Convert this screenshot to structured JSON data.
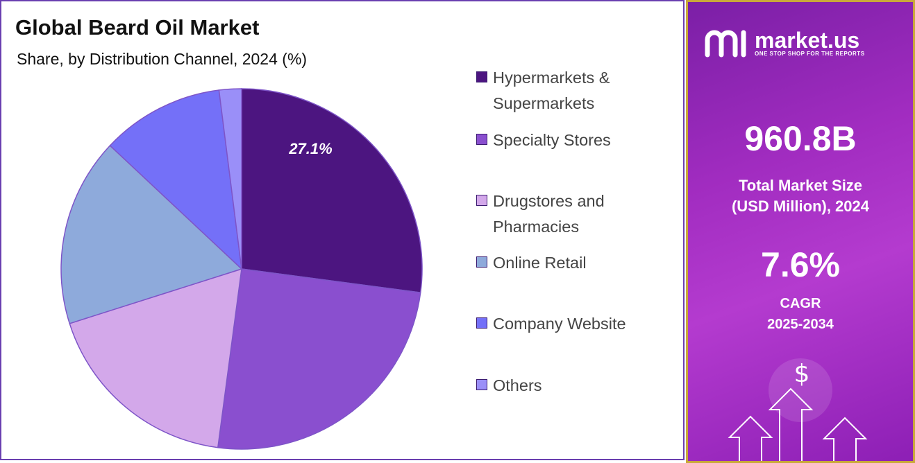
{
  "chart_data": {
    "type": "pie",
    "title": "Global Beard Oil Market",
    "subtitle": "Share, by Distribution Channel, 2024 (%)",
    "categories": [
      "Hypermarkets & Supermarkets",
      "Specialty Stores",
      "Drugstores and Pharmacies",
      "Online Retail",
      "Company Website",
      "Others"
    ],
    "values": [
      27.1,
      25.0,
      18.0,
      16.9,
      11.0,
      2.0
    ],
    "colors": [
      "#4c1580",
      "#8a4fcf",
      "#d3a8ea",
      "#8eaadb",
      "#7470f8",
      "#9a8ff8"
    ],
    "data_labels": [
      {
        "text": "27.1%",
        "index": 0
      }
    ],
    "legend_position": "right"
  },
  "legend_lines": [
    [
      "Hypermarkets &",
      "Supermarkets"
    ],
    [
      "Specialty Stores"
    ],
    [
      "Drugstores and",
      "Pharmacies"
    ],
    [
      "Online Retail"
    ],
    [
      "Company Website"
    ],
    [
      "Others"
    ]
  ],
  "brand": {
    "name": "market.us",
    "tagline": "ONE STOP SHOP FOR THE REPORTS"
  },
  "stats": {
    "market_size_value": "960.8B",
    "market_size_label_1": "Total Market Size",
    "market_size_label_2": "(USD Million), 2024",
    "cagr_value": "7.6%",
    "cagr_label_1": "CAGR",
    "cagr_label_2": "2025-2034"
  },
  "decor": {
    "dollar_symbol": "$"
  }
}
